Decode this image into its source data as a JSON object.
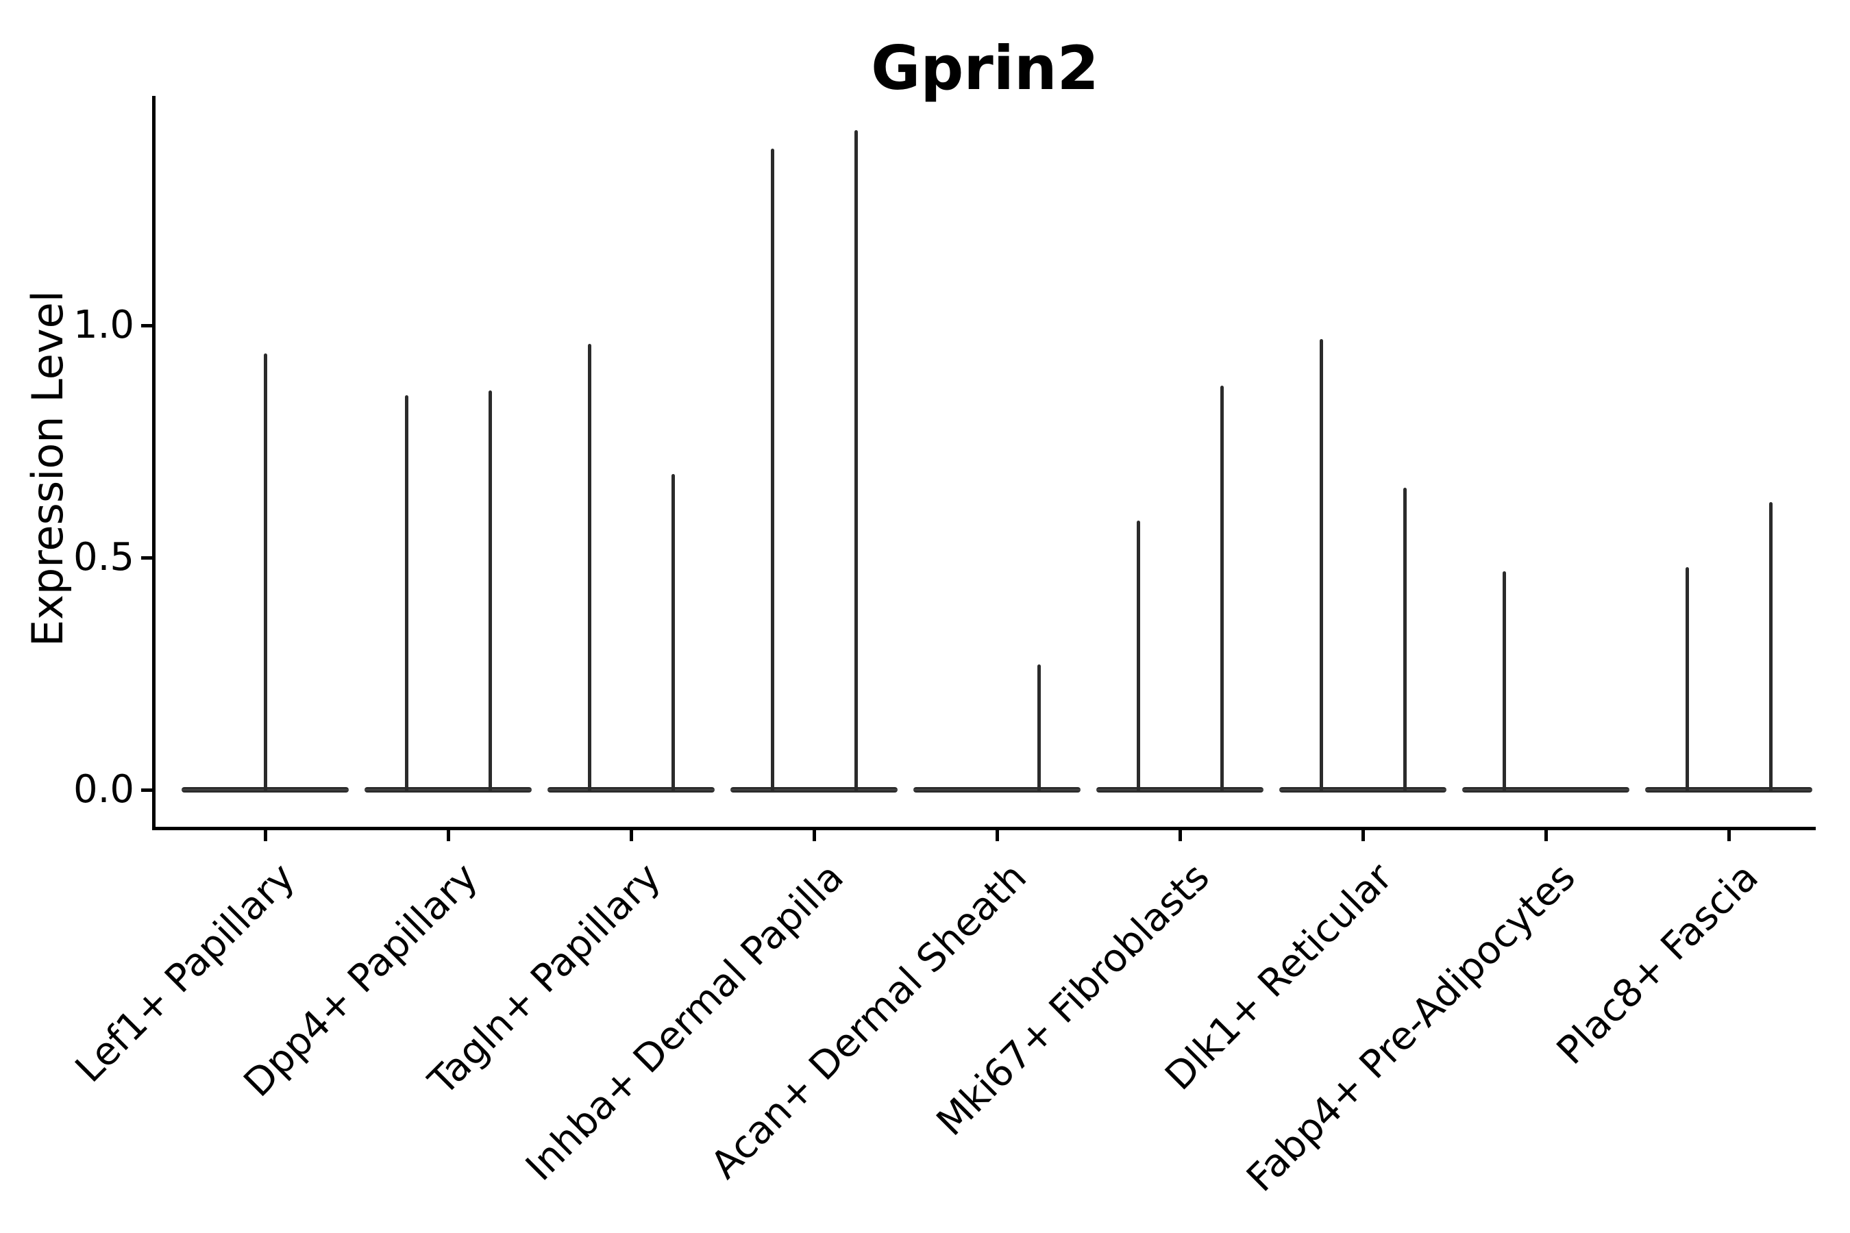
{
  "title": "Gprin2",
  "axes": {
    "ylabel": "Expression Level",
    "ytick_labels": [
      "0.0",
      "0.5",
      "1.0"
    ]
  },
  "colors": {
    "line": "#2b2b2b",
    "spine": "#000000",
    "text": "#000000",
    "background": "#ffffff"
  },
  "chart_data": {
    "type": "violin",
    "title": "Gprin2",
    "xlabel": "",
    "ylabel": "Expression Level",
    "ylim": [
      -0.08,
      1.49
    ],
    "yticks": [
      0.0,
      0.5,
      1.0
    ],
    "grid": false,
    "legend": null,
    "baseline_value": 0.0,
    "categories": [
      "Lef1+ Papillary",
      "Dpp4+ Papillary",
      "Tagln+ Papillary",
      "Inhba+ Dermal Papilla",
      "Acan+ Dermal Sheath",
      "Mki67+ Fibroblasts",
      "Dlk1+ Reticular",
      "Fabp4+ Pre-Adipocytes",
      "Plac8+ Fascia"
    ],
    "violins": [
      {
        "category": "Lef1+ Papillary",
        "spikes": [
          {
            "position": "center",
            "peak": 0.94
          }
        ]
      },
      {
        "category": "Dpp4+ Papillary",
        "spikes": [
          {
            "position": "left",
            "peak": 0.85
          },
          {
            "position": "right",
            "peak": 0.86
          }
        ]
      },
      {
        "category": "Tagln+ Papillary",
        "spikes": [
          {
            "position": "left",
            "peak": 0.96
          },
          {
            "position": "right",
            "peak": 0.68
          }
        ]
      },
      {
        "category": "Inhba+ Dermal Papilla",
        "spikes": [
          {
            "position": "left",
            "peak": 1.38
          },
          {
            "position": "right",
            "peak": 1.42
          }
        ]
      },
      {
        "category": "Acan+ Dermal Sheath",
        "spikes": [
          {
            "position": "right",
            "peak": 0.27
          }
        ]
      },
      {
        "category": "Mki67+ Fibroblasts",
        "spikes": [
          {
            "position": "left",
            "peak": 0.58
          },
          {
            "position": "right",
            "peak": 0.87
          }
        ]
      },
      {
        "category": "Dlk1+ Reticular",
        "spikes": [
          {
            "position": "left",
            "peak": 0.97
          },
          {
            "position": "right",
            "peak": 0.65
          }
        ]
      },
      {
        "category": "Fabp4+ Pre-Adipocytes",
        "spikes": [
          {
            "position": "left",
            "peak": 0.47
          }
        ]
      },
      {
        "category": "Plac8+ Fascia",
        "spikes": [
          {
            "position": "left",
            "peak": 0.48
          },
          {
            "position": "right",
            "peak": 0.62
          }
        ]
      }
    ]
  }
}
